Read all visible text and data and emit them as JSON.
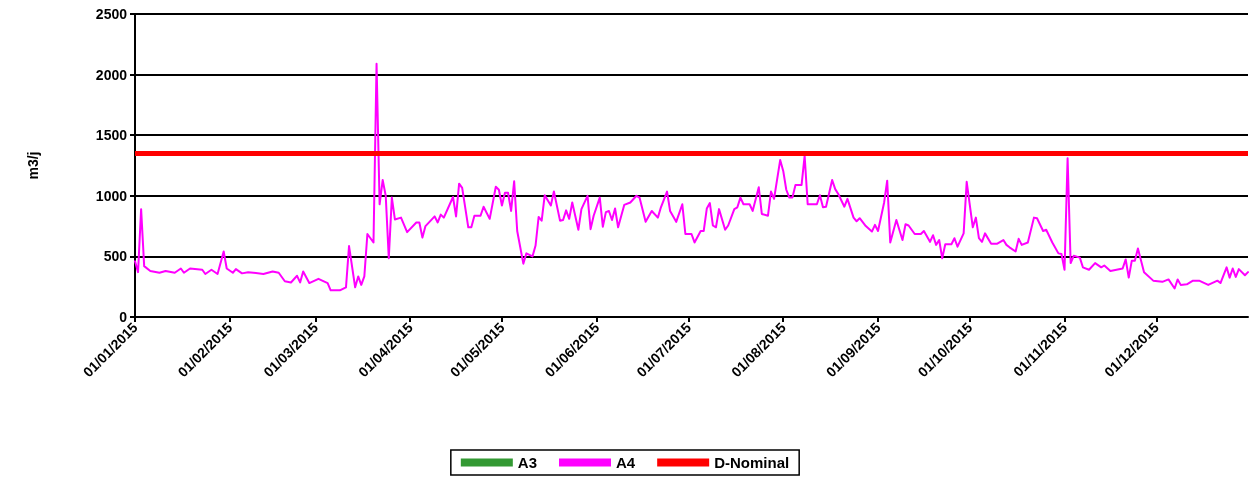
{
  "chart_data": {
    "type": "line",
    "ylabel": "m3/j",
    "xlim": [
      "2015-01-01",
      "2015-12-31"
    ],
    "xticks": [
      {
        "value": "2015-01-01",
        "label": "01/01/2015"
      },
      {
        "value": "2015-02-01",
        "label": "01/02/2015"
      },
      {
        "value": "2015-03-01",
        "label": "01/03/2015"
      },
      {
        "value": "2015-04-01",
        "label": "01/04/2015"
      },
      {
        "value": "2015-05-01",
        "label": "01/05/2015"
      },
      {
        "value": "2015-06-01",
        "label": "01/06/2015"
      },
      {
        "value": "2015-07-01",
        "label": "01/07/2015"
      },
      {
        "value": "2015-08-01",
        "label": "01/08/2015"
      },
      {
        "value": "2015-09-01",
        "label": "01/09/2015"
      },
      {
        "value": "2015-10-01",
        "label": "01/10/2015"
      },
      {
        "value": "2015-11-01",
        "label": "01/11/2015"
      },
      {
        "value": "2015-12-01",
        "label": "01/12/2015"
      }
    ],
    "ylim": [
      0,
      2500
    ],
    "yticks": [
      0,
      500,
      1000,
      1500,
      2000,
      2500
    ],
    "grid": "y",
    "legend": "bottom",
    "marker": "none",
    "line_style": "solid",
    "ref_lines": [
      {
        "axis": "y",
        "value": 1350,
        "label": "D-Nominal",
        "color": "#ff0000"
      }
    ],
    "series": [
      {
        "name": "A3",
        "color": "#339933"
      },
      {
        "name": "A4",
        "color": "#ff00ff",
        "x": [
          "2015-01-01",
          "2015-01-02",
          "2015-01-03",
          "2015-01-04",
          "2015-01-06",
          "2015-01-09",
          "2015-01-11",
          "2015-01-14",
          "2015-01-16",
          "2015-01-17",
          "2015-01-19",
          "2015-01-23",
          "2015-01-24",
          "2015-01-26",
          "2015-01-28",
          "2015-01-30",
          "2015-01-31",
          "2015-02-02",
          "2015-02-03",
          "2015-02-05",
          "2015-02-07",
          "2015-02-12",
          "2015-02-15",
          "2015-02-17",
          "2015-02-19",
          "2015-02-21",
          "2015-02-23",
          "2015-02-24",
          "2015-02-25",
          "2015-02-27",
          "2015-03-02",
          "2015-03-05",
          "2015-03-06",
          "2015-03-09",
          "2015-03-11",
          "2015-03-12",
          "2015-03-14",
          "2015-03-15",
          "2015-03-16",
          "2015-03-17",
          "2015-03-18",
          "2015-03-20",
          "2015-03-21",
          "2015-03-22",
          "2015-03-23",
          "2015-03-24",
          "2015-03-25",
          "2015-03-26",
          "2015-03-27",
          "2015-03-29",
          "2015-03-31",
          "2015-04-03",
          "2015-04-04",
          "2015-04-05",
          "2015-04-06",
          "2015-04-09",
          "2015-04-10",
          "2015-04-11",
          "2015-04-12",
          "2015-04-15",
          "2015-04-16",
          "2015-04-17",
          "2015-04-18",
          "2015-04-20",
          "2015-04-21",
          "2015-04-22",
          "2015-04-24",
          "2015-04-25",
          "2015-04-27",
          "2015-04-29",
          "2015-04-30",
          "2015-05-01",
          "2015-05-02",
          "2015-05-03",
          "2015-05-04",
          "2015-05-05",
          "2015-05-06",
          "2015-05-08",
          "2015-05-09",
          "2015-05-11",
          "2015-05-12",
          "2015-05-13",
          "2015-05-14",
          "2015-05-15",
          "2015-05-17",
          "2015-05-18",
          "2015-05-20",
          "2015-05-21",
          "2015-05-22",
          "2015-05-23",
          "2015-05-24",
          "2015-05-26",
          "2015-05-27",
          "2015-05-29",
          "2015-05-30",
          "2015-05-31",
          "2015-06-02",
          "2015-06-03",
          "2015-06-04",
          "2015-06-05",
          "2015-06-06",
          "2015-06-07",
          "2015-06-08",
          "2015-06-10",
          "2015-06-12",
          "2015-06-14",
          "2015-06-15",
          "2015-06-17",
          "2015-06-19",
          "2015-06-21",
          "2015-06-22",
          "2015-06-24",
          "2015-06-25",
          "2015-06-27",
          "2015-06-29",
          "2015-06-30",
          "2015-07-02",
          "2015-07-03",
          "2015-07-05",
          "2015-07-06",
          "2015-07-07",
          "2015-07-08",
          "2015-07-09",
          "2015-07-10",
          "2015-07-11",
          "2015-07-13",
          "2015-07-14",
          "2015-07-16",
          "2015-07-17",
          "2015-07-18",
          "2015-07-19",
          "2015-07-21",
          "2015-07-22",
          "2015-07-24",
          "2015-07-25",
          "2015-07-27",
          "2015-07-28",
          "2015-07-29",
          "2015-07-31",
          "2015-08-01",
          "2015-08-02",
          "2015-08-03",
          "2015-08-04",
          "2015-08-05",
          "2015-08-07",
          "2015-08-08",
          "2015-08-09",
          "2015-08-11",
          "2015-08-12",
          "2015-08-13",
          "2015-08-14",
          "2015-08-15",
          "2015-08-17",
          "2015-08-18",
          "2015-08-19",
          "2015-08-21",
          "2015-08-22",
          "2015-08-24",
          "2015-08-25",
          "2015-08-26",
          "2015-08-28",
          "2015-08-30",
          "2015-08-31",
          "2015-09-01",
          "2015-09-03",
          "2015-09-04",
          "2015-09-05",
          "2015-09-07",
          "2015-09-09",
          "2015-09-10",
          "2015-09-11",
          "2015-09-13",
          "2015-09-15",
          "2015-09-16",
          "2015-09-18",
          "2015-09-19",
          "2015-09-20",
          "2015-09-21",
          "2015-09-22",
          "2015-09-23",
          "2015-09-25",
          "2015-09-26",
          "2015-09-27",
          "2015-09-29",
          "2015-09-30",
          "2015-10-02",
          "2015-10-03",
          "2015-10-04",
          "2015-10-05",
          "2015-10-06",
          "2015-10-08",
          "2015-10-10",
          "2015-10-12",
          "2015-10-13",
          "2015-10-14",
          "2015-10-16",
          "2015-10-17",
          "2015-10-18",
          "2015-10-20",
          "2015-10-22",
          "2015-10-23",
          "2015-10-25",
          "2015-10-26",
          "2015-10-28",
          "2015-10-30",
          "2015-10-31",
          "2015-11-01",
          "2015-11-02",
          "2015-11-03",
          "2015-11-04",
          "2015-11-06",
          "2015-11-07",
          "2015-11-09",
          "2015-11-11",
          "2015-11-13",
          "2015-11-14",
          "2015-11-16",
          "2015-11-20",
          "2015-11-21",
          "2015-11-22",
          "2015-11-23",
          "2015-11-24",
          "2015-11-25",
          "2015-11-27",
          "2015-11-30",
          "2015-12-03",
          "2015-12-05",
          "2015-12-07",
          "2015-12-08",
          "2015-12-09",
          "2015-12-11",
          "2015-12-13",
          "2015-12-15",
          "2015-12-18",
          "2015-12-21",
          "2015-12-22",
          "2015-12-24",
          "2015-12-25",
          "2015-12-26",
          "2015-12-27",
          "2015-12-28",
          "2015-12-30",
          "2015-12-31"
        ],
        "values": [
          460,
          370,
          890,
          420,
          380,
          365,
          380,
          365,
          400,
          365,
          400,
          390,
          355,
          390,
          355,
          540,
          400,
          365,
          395,
          360,
          370,
          355,
          375,
          365,
          295,
          285,
          340,
          285,
          375,
          280,
          315,
          280,
          220,
          220,
          245,
          585,
          245,
          335,
          265,
          335,
          685,
          615,
          2090,
          930,
          1130,
          1000,
          485,
          985,
          805,
          820,
          700,
          780,
          780,
          655,
          750,
          830,
          780,
          845,
          820,
          990,
          830,
          1100,
          1065,
          740,
          740,
          835,
          835,
          910,
          810,
          1075,
          1050,
          920,
          1025,
          1025,
          875,
          1120,
          710,
          440,
          525,
          500,
          590,
          825,
          795,
          1005,
          920,
          1035,
          795,
          800,
          880,
          810,
          945,
          720,
          890,
          1000,
          725,
          835,
          985,
          745,
          865,
          875,
          800,
          895,
          740,
          925,
          945,
          1000,
          985,
          785,
          875,
          820,
          905,
          1035,
          875,
          785,
          930,
          685,
          685,
          615,
          710,
          710,
          895,
          940,
          755,
          740,
          890,
          720,
          755,
          890,
          905,
          985,
          930,
          930,
          875,
          1070,
          850,
          835,
          1035,
          975,
          1295,
          1205,
          1050,
          985,
          985,
          1090,
          1090,
          1330,
          930,
          930,
          930,
          1005,
          905,
          910,
          1130,
          1055,
          1015,
          910,
          975,
          820,
          790,
          815,
          750,
          705,
          760,
          710,
          945,
          1125,
          615,
          800,
          635,
          765,
          755,
          685,
          685,
          710,
          620,
          675,
          595,
          635,
          485,
          600,
          600,
          650,
          580,
          690,
          1115,
          740,
          820,
          650,
          620,
          690,
          605,
          605,
          635,
          595,
          575,
          540,
          645,
          595,
          615,
          820,
          815,
          710,
          720,
          615,
          525,
          520,
          390,
          1310,
          445,
          505,
          490,
          410,
          390,
          445,
          410,
          425,
          380,
          400,
          475,
          325,
          465,
          465,
          565,
          370,
          300,
          290,
          310,
          235,
          310,
          265,
          270,
          300,
          300,
          265,
          300,
          280,
          410,
          325,
          400,
          330,
          395,
          345,
          370
        ]
      }
    ]
  }
}
